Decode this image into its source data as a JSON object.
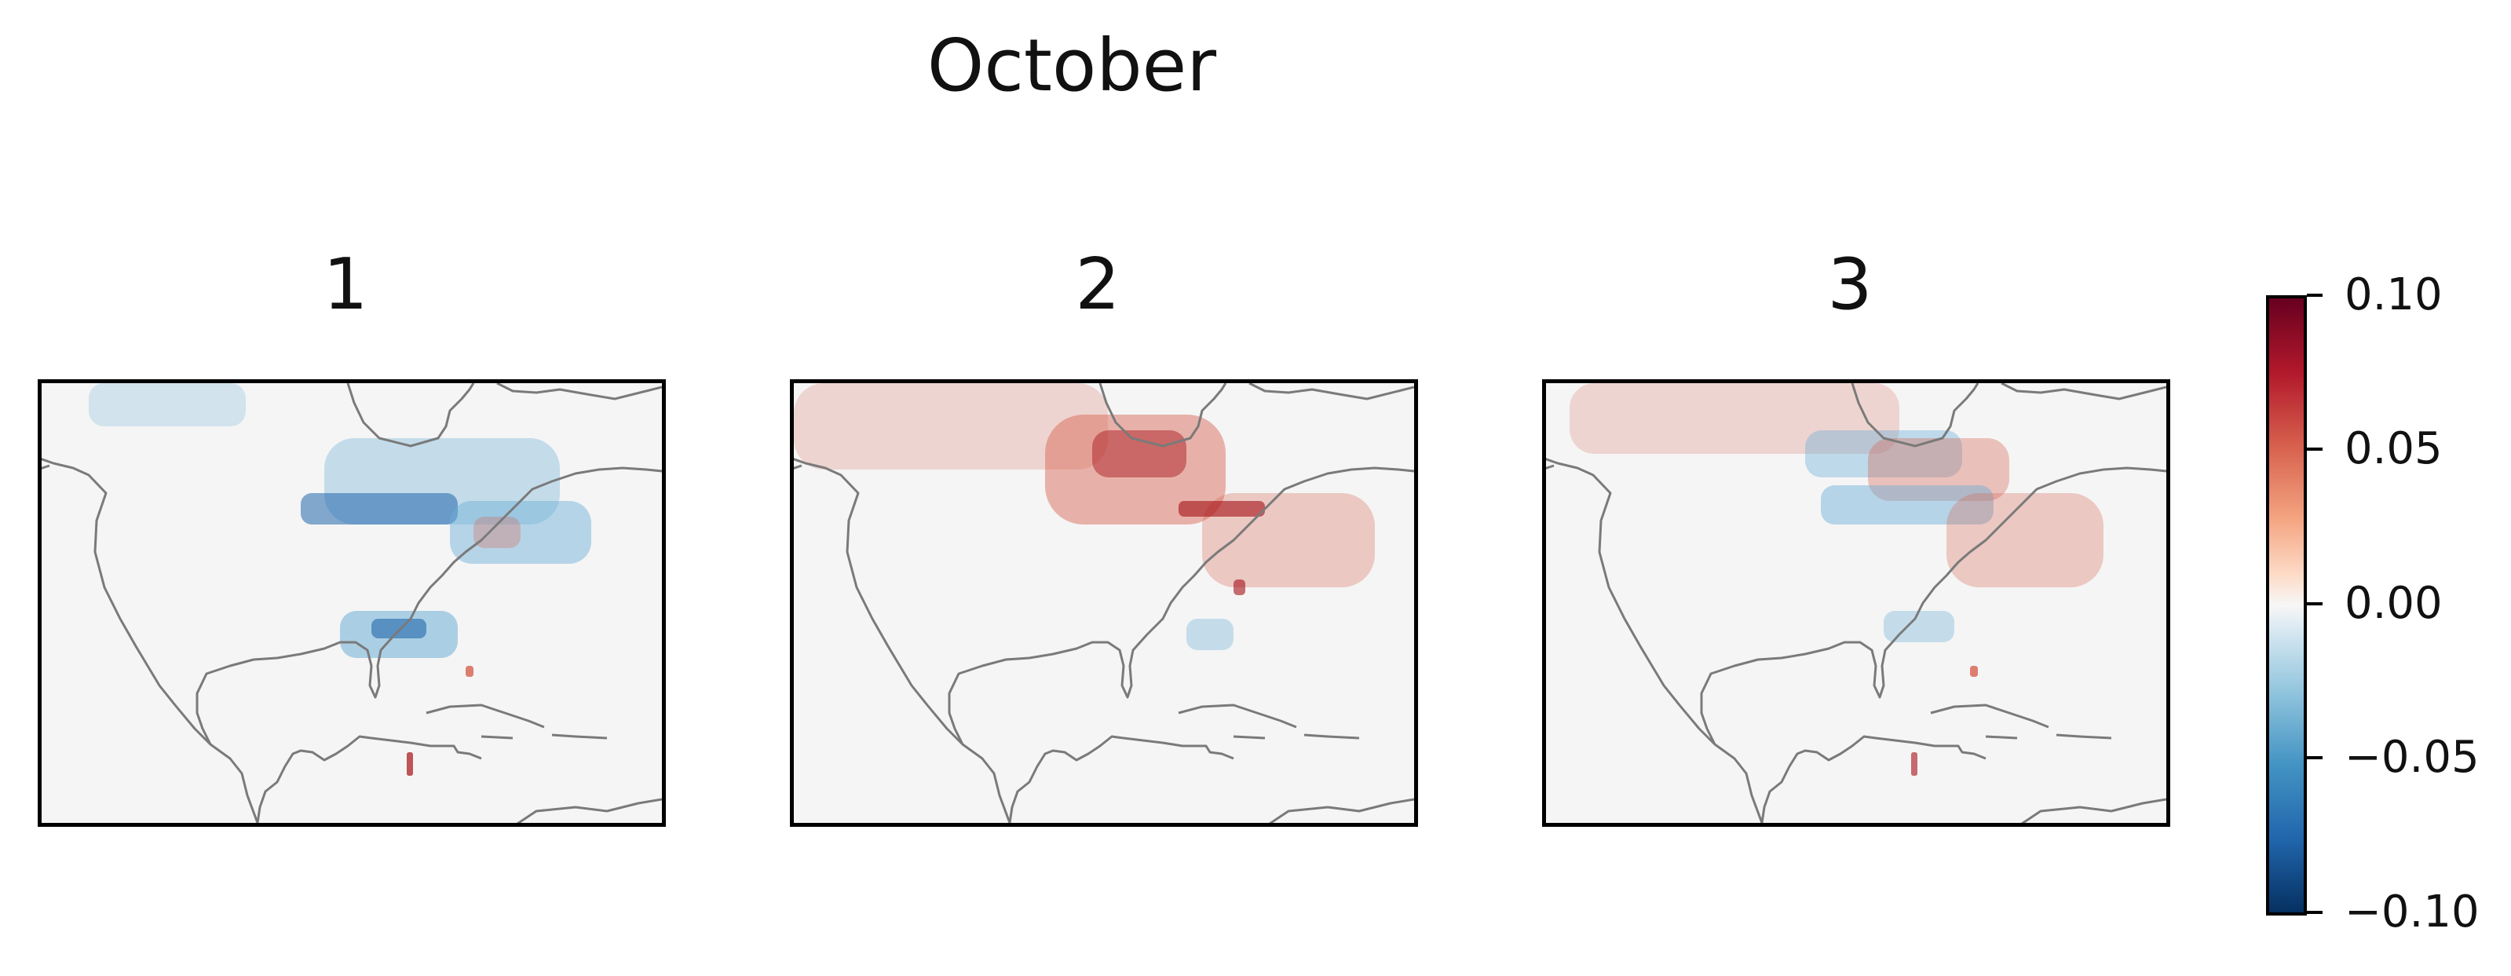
{
  "title": "October",
  "chart_data": [
    {
      "type": "heatmap",
      "title": "1",
      "region": "North America and Central America",
      "pattern": "negative anomalies (blue) over southern Canada, Great Lakes and Northeast US, and along the US Gulf coast; small positive spots in Florida and Central America"
    },
    {
      "type": "heatmap",
      "title": "2",
      "region": "North America and Central America",
      "pattern": "positive anomalies (red) over central Canada and the Great Lakes/Northeast US; weak positive over western Canada; small negative near the Gulf coast"
    },
    {
      "type": "heatmap",
      "title": "3",
      "region": "North America and Central America",
      "pattern": "mixed anomalies: weak positive across northern Canada, negative along the Great Lakes band, positive over the Northeast US; small negative near the Gulf coast"
    }
  ],
  "colorbar": {
    "colormap": "RdBu_r",
    "range": [
      -0.1,
      0.1
    ],
    "tick_values": [
      0.1,
      0.05,
      0.0,
      -0.05,
      -0.1
    ],
    "ticks": [
      "0.10",
      "0.05",
      "0.00",
      "−0.05",
      "−0.10"
    ]
  },
  "colors": {
    "coastline": "#7a7a7a",
    "background": "#f5f5f5",
    "positive": "#d6604d",
    "strong_positive": "#a50f15",
    "negative": "#6baed6",
    "strong_negative": "#2166ac"
  }
}
